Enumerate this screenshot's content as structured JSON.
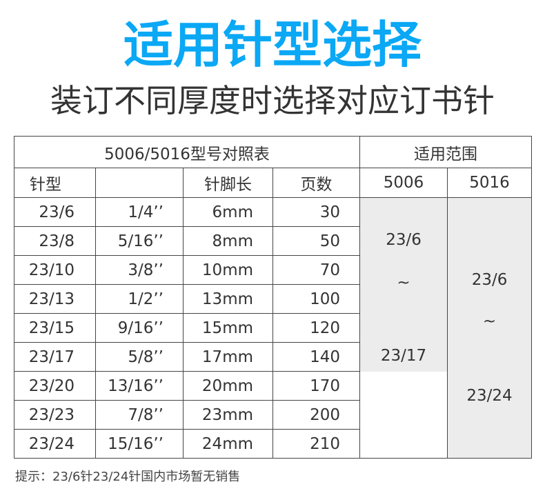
{
  "title": "适用针型选择",
  "subtitle": "装订不同厚度时选择对应订书针",
  "colors": {
    "title": "#0aa8f5",
    "range_fill": "#ececec",
    "border": "#444444"
  },
  "table": {
    "group_header": "5006/5016型号对照表",
    "range_header": "适用范围",
    "columns": [
      "针型",
      "",
      "针脚长",
      "页数",
      "5006",
      "5016"
    ],
    "rows": [
      [
        "23/6",
        "1/4’’",
        "6mm",
        "30"
      ],
      [
        "23/8",
        "5/16’’",
        "8mm",
        "50"
      ],
      [
        "23/10",
        "3/8’’",
        "10mm",
        "70"
      ],
      [
        "23/13",
        "1/2’’",
        "13mm",
        "100"
      ],
      [
        "23/15",
        "9/16’’",
        "15mm",
        "120"
      ],
      [
        "23/17",
        "5/8’’",
        "17mm",
        "140"
      ],
      [
        "23/20",
        "13/16’’",
        "20mm",
        "170"
      ],
      [
        "23/23",
        "7/8’’",
        "23mm",
        "200"
      ],
      [
        "23/24",
        "15/16’’",
        "24mm",
        "210"
      ]
    ],
    "range_5006": {
      "from": "23/6",
      "sep": "~",
      "to": "23/17"
    },
    "range_5016": {
      "from": "23/6",
      "sep": "~",
      "to": "23/24"
    }
  },
  "footer": "提示：23/6针23/24针国内市场暂无销售"
}
